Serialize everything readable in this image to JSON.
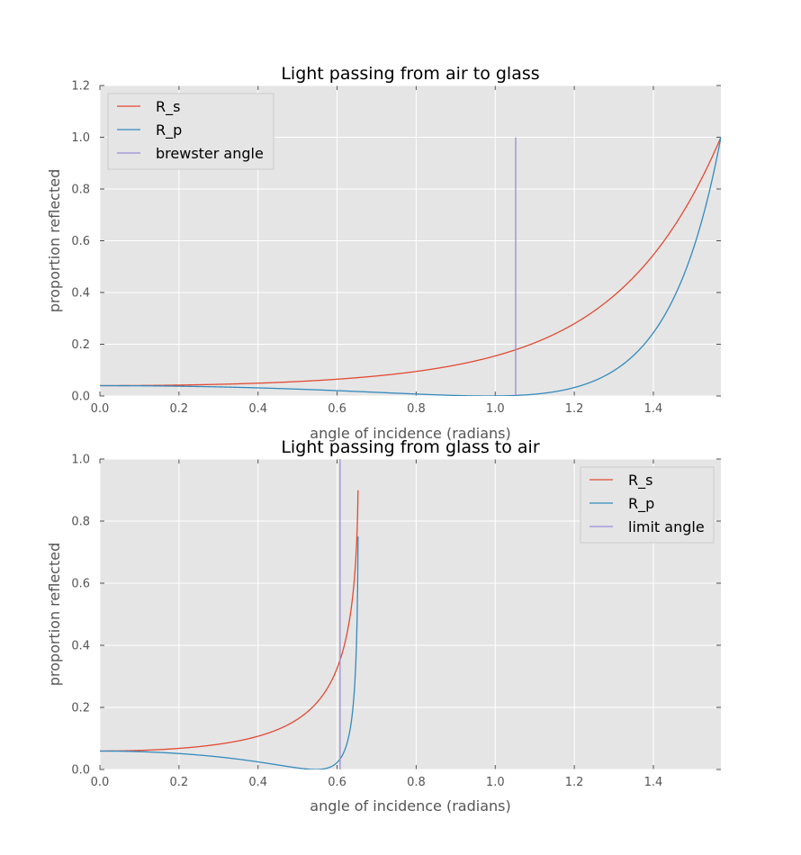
{
  "colors": {
    "rs": "#E24A33",
    "rp": "#348ABD",
    "marker": "#988ED5",
    "background": "#E5E5E5",
    "grid": "#FFFFFF"
  },
  "chart_data": [
    {
      "type": "line",
      "title": "Light passing from air to glass",
      "xlabel": "angle of incidence (radians)",
      "ylabel": "proportion reflected",
      "xlim": [
        0,
        1.5708
      ],
      "ylim": [
        0,
        1.2
      ],
      "xticks": [
        "0.0",
        "0.2",
        "0.4",
        "0.6",
        "0.8",
        "1.0",
        "1.2",
        "1.4"
      ],
      "yticks": [
        "0.0",
        "0.2",
        "0.4",
        "0.6",
        "0.8",
        "1.0",
        "1.2"
      ],
      "grid": true,
      "legend": "top-left",
      "refractive_index_ratio": 0.6667,
      "series": [
        {
          "name": "R_s",
          "color_key": "rs",
          "curve": "fresnel_s"
        },
        {
          "name": "R_p",
          "color_key": "rp",
          "curve": "fresnel_p"
        },
        {
          "name": "brewster angle",
          "color_key": "marker",
          "vertical_x": 1.0517,
          "y_range": [
            0,
            1
          ]
        }
      ]
    },
    {
      "type": "line",
      "title": "Light passing from glass to air",
      "xlabel": "angle of incidence (radians)",
      "ylabel": "proportion reflected",
      "xlim": [
        0,
        1.5708
      ],
      "ylim": [
        0,
        1.0
      ],
      "xticks": [
        "0.0",
        "0.2",
        "0.4",
        "0.6",
        "0.8",
        "1.0",
        "1.2",
        "1.4"
      ],
      "yticks": [
        "0.0",
        "0.2",
        "0.4",
        "0.6",
        "0.8",
        "1.0"
      ],
      "grid": true,
      "legend": "top-right",
      "refractive_index_ratio": 1.6449,
      "series": [
        {
          "name": "R_s",
          "color_key": "rs",
          "curve": "fresnel_s"
        },
        {
          "name": "R_p",
          "color_key": "rp",
          "curve": "fresnel_p"
        },
        {
          "name": "limit angle",
          "color_key": "marker",
          "vertical_x": 0.6075,
          "y_range": [
            0,
            1
          ]
        }
      ]
    }
  ]
}
